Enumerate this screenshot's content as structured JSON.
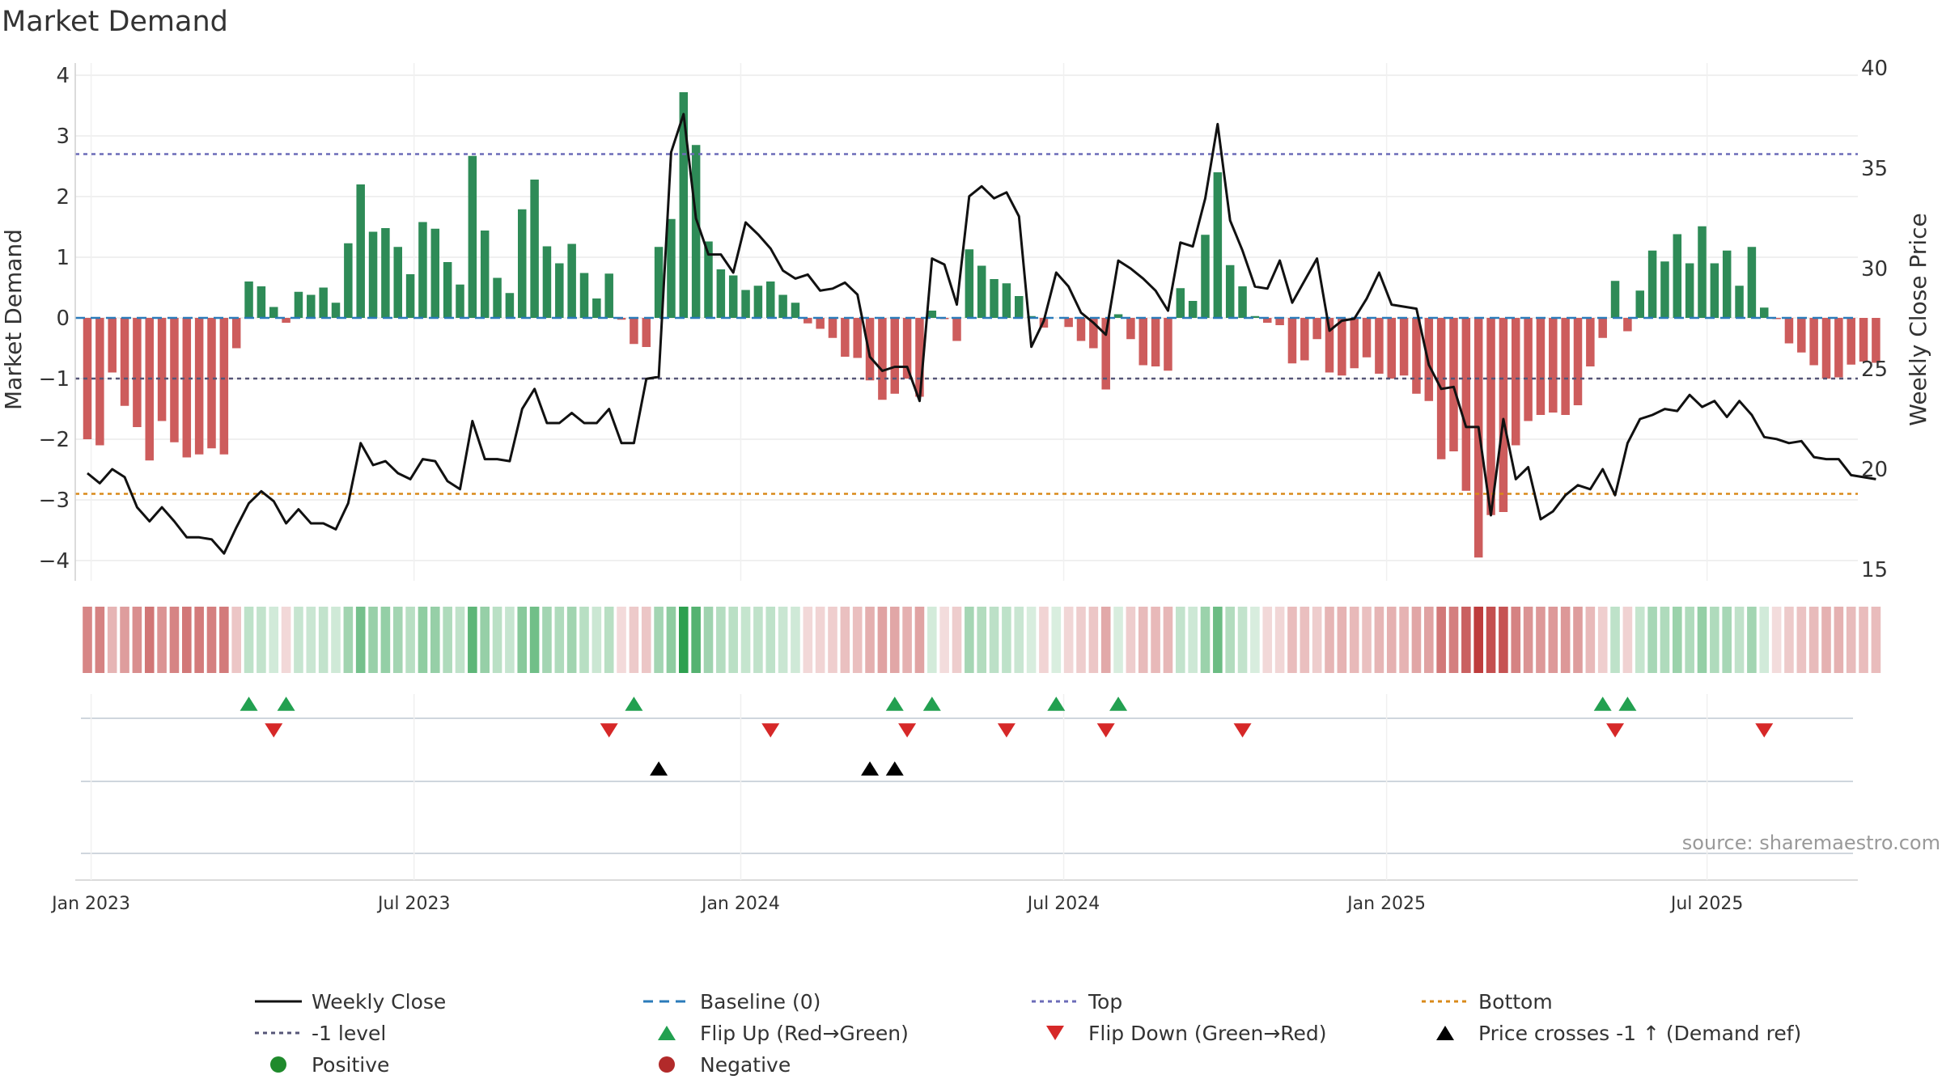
{
  "chart_data": {
    "type": "bar+line",
    "title": "Market Demand",
    "ylabel_left": "Market Demand",
    "ylabel_right": "Weekly Close Price",
    "ylim_left": [
      -4.3,
      4.0
    ],
    "ylim_right": [
      15,
      40
    ],
    "yticks_left": [
      4,
      3,
      2,
      1,
      0,
      -1,
      -2,
      -3,
      -4
    ],
    "yticks_right": [
      40,
      35,
      30,
      25,
      20,
      15
    ],
    "x_ticks": [
      "Jan 2023",
      "Jul 2023",
      "Jan 2024",
      "Jul 2024",
      "Jan 2025",
      "Jul 2025"
    ],
    "x_tick_weeks": [
      0.3,
      26.3,
      52.6,
      78.6,
      104.6,
      130.4
    ],
    "levels": {
      "top": 2.7,
      "minus_one": -1.0,
      "bottom": -2.9,
      "baseline": 0
    },
    "demand": [
      -2.0,
      -2.1,
      -0.9,
      -1.45,
      -1.8,
      -2.35,
      -1.7,
      -2.05,
      -2.3,
      -2.25,
      -2.15,
      -2.25,
      -0.5,
      0.6,
      0.52,
      0.18,
      -0.08,
      0.43,
      0.38,
      0.5,
      0.25,
      1.23,
      2.2,
      1.42,
      1.48,
      1.17,
      0.72,
      1.58,
      1.47,
      0.92,
      0.55,
      2.67,
      1.44,
      0.66,
      0.41,
      1.79,
      2.28,
      1.18,
      0.9,
      1.22,
      0.74,
      0.32,
      0.73,
      -0.03,
      -0.43,
      -0.48,
      1.17,
      1.63,
      3.72,
      2.85,
      1.26,
      0.8,
      0.7,
      0.46,
      0.53,
      0.6,
      0.38,
      0.25,
      -0.09,
      -0.18,
      -0.33,
      -0.64,
      -0.66,
      -1.03,
      -1.35,
      -1.25,
      -1.0,
      -1.3,
      0.12,
      -0.02,
      -0.38,
      1.13,
      0.86,
      0.64,
      0.57,
      0.36,
      0.03,
      -0.16,
      0.0,
      -0.15,
      -0.38,
      -0.5,
      -1.18,
      0.06,
      -0.35,
      -0.78,
      -0.8,
      -0.87,
      0.49,
      0.28,
      1.37,
      2.4,
      0.87,
      0.52,
      0.03,
      -0.08,
      -0.12,
      -0.75,
      -0.7,
      -0.35,
      -0.9,
      -0.95,
      -0.83,
      -0.65,
      -0.92,
      -1.0,
      -0.95,
      -1.25,
      -1.37,
      -2.33,
      -2.2,
      -2.85,
      -3.95,
      -3.25,
      -3.2,
      -2.1,
      -1.7,
      -1.6,
      -1.56,
      -1.6,
      -1.44,
      -0.8,
      -0.33,
      0.61,
      -0.22,
      0.45,
      1.11,
      0.93,
      1.38,
      0.9,
      1.51,
      0.9,
      1.11,
      0.53,
      1.17,
      0.17,
      -0.02,
      -0.42,
      -0.57,
      -0.78,
      -1.0,
      -0.98,
      -0.77,
      -0.72,
      -0.74
    ],
    "close": [
      19.8,
      19.3,
      20.0,
      19.6,
      18.1,
      17.4,
      18.1,
      17.4,
      16.6,
      16.6,
      16.5,
      15.8,
      17.1,
      18.3,
      18.9,
      18.4,
      17.3,
      18.0,
      17.3,
      17.3,
      17.0,
      18.3,
      21.3,
      20.2,
      20.4,
      19.8,
      19.5,
      20.5,
      20.4,
      19.4,
      19.0,
      22.4,
      20.5,
      20.5,
      20.4,
      23.0,
      24.0,
      22.3,
      22.3,
      22.8,
      22.3,
      22.3,
      23.0,
      21.3,
      21.3,
      24.5,
      24.6,
      35.8,
      37.7,
      32.5,
      30.7,
      30.7,
      29.8,
      32.3,
      31.7,
      31.0,
      29.9,
      29.5,
      29.7,
      28.9,
      29.0,
      29.3,
      28.7,
      25.6,
      24.9,
      25.1,
      25.1,
      23.4,
      30.5,
      30.2,
      28.2,
      33.6,
      34.1,
      33.5,
      33.8,
      32.6,
      26.1,
      27.4,
      29.8,
      29.1,
      27.8,
      27.3,
      26.7,
      30.4,
      30.0,
      29.5,
      28.9,
      27.9,
      31.3,
      31.1,
      33.5,
      37.2,
      32.4,
      30.9,
      29.1,
      29.0,
      30.4,
      28.3,
      29.4,
      30.5,
      26.9,
      27.4,
      27.5,
      28.5,
      29.8,
      28.2,
      28.1,
      28.0,
      25.2,
      24.0,
      24.1,
      22.1,
      22.1,
      17.7,
      22.5,
      19.5,
      20.1,
      17.5,
      17.9,
      18.7,
      19.2,
      19.0,
      20.0,
      18.7,
      21.3,
      22.5,
      22.7,
      23.0,
      22.9,
      23.7,
      23.1,
      23.4,
      22.6,
      23.4,
      22.7,
      21.6,
      21.5,
      21.3,
      21.4,
      20.6,
      20.5,
      20.5,
      19.7,
      19.6,
      19.5
    ],
    "flip_up_weeks": [
      13,
      16,
      44,
      65,
      68,
      78,
      83,
      122,
      124
    ],
    "flip_down_weeks": [
      15,
      42,
      55,
      66,
      74,
      82,
      93,
      123,
      135
    ],
    "price_cross_weeks": [
      46,
      63,
      65
    ],
    "source_note": "source: sharemaestro.com",
    "legend": [
      {
        "label": "Weekly Close",
        "kind": "solid",
        "color": "#111111"
      },
      {
        "label": "Baseline (0)",
        "kind": "dashed",
        "color": "#2b7bba"
      },
      {
        "label": "Top",
        "kind": "dotted",
        "color": "#6b6bb8"
      },
      {
        "label": "Bottom",
        "kind": "dotted",
        "color": "#d98a1a"
      },
      {
        "label": "-1 level",
        "kind": "dotted",
        "color": "#555577"
      },
      {
        "label": "Flip Up (Red→Green)",
        "kind": "tri-up",
        "color": "#22a050"
      },
      {
        "label": "Flip Down (Green→Red)",
        "kind": "tri-down",
        "color": "#d62828"
      },
      {
        "label": "Price crosses -1 ↑ (Demand ref)",
        "kind": "tri-up",
        "color": "#000000"
      },
      {
        "label": "Positive",
        "kind": "dot",
        "color": "#1f8a2c"
      },
      {
        "label": "Negative",
        "kind": "dot",
        "color": "#b22a2a"
      }
    ]
  },
  "colors": {
    "positive_bar": "#2e8b57",
    "negative_bar": "#cd5c5c",
    "price_line": "#111111",
    "baseline": "#2b7bba"
  }
}
